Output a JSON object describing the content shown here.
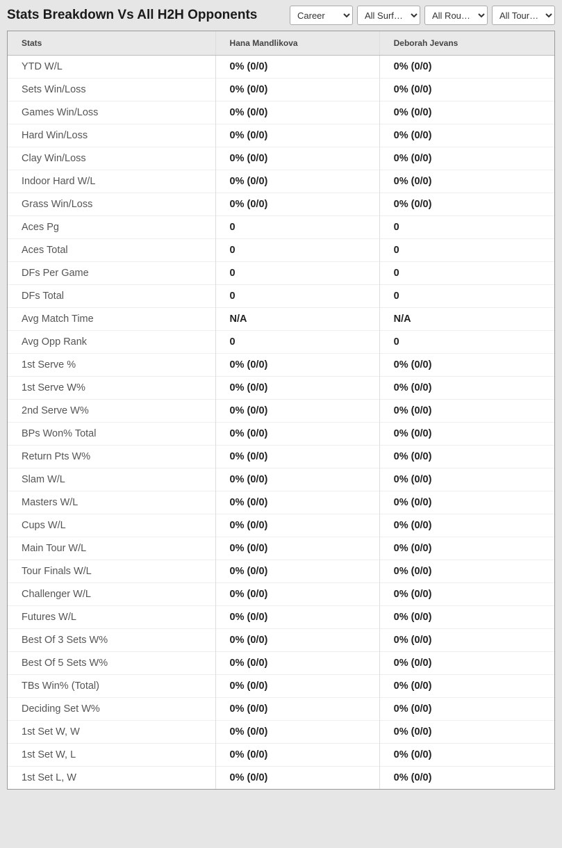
{
  "header": {
    "title": "Stats Breakdown Vs All H2H Opponents",
    "filters": {
      "period": "Career",
      "surface": "All Surf…",
      "round": "All Rou…",
      "tour": "All Tour…"
    }
  },
  "table": {
    "columns": [
      "Stats",
      "Hana Mandlikova",
      "Deborah Jevans"
    ],
    "rows": [
      {
        "label": "YTD W/L",
        "p1": "0% (0/0)",
        "p2": "0% (0/0)"
      },
      {
        "label": "Sets Win/Loss",
        "p1": "0% (0/0)",
        "p2": "0% (0/0)"
      },
      {
        "label": "Games Win/Loss",
        "p1": "0% (0/0)",
        "p2": "0% (0/0)"
      },
      {
        "label": "Hard Win/Loss",
        "p1": "0% (0/0)",
        "p2": "0% (0/0)"
      },
      {
        "label": "Clay Win/Loss",
        "p1": "0% (0/0)",
        "p2": "0% (0/0)"
      },
      {
        "label": "Indoor Hard W/L",
        "p1": "0% (0/0)",
        "p2": "0% (0/0)"
      },
      {
        "label": "Grass Win/Loss",
        "p1": "0% (0/0)",
        "p2": "0% (0/0)"
      },
      {
        "label": "Aces Pg",
        "p1": "0",
        "p2": "0"
      },
      {
        "label": "Aces Total",
        "p1": "0",
        "p2": "0"
      },
      {
        "label": "DFs Per Game",
        "p1": "0",
        "p2": "0"
      },
      {
        "label": "DFs Total",
        "p1": "0",
        "p2": "0"
      },
      {
        "label": "Avg Match Time",
        "p1": "N/A",
        "p2": "N/A"
      },
      {
        "label": "Avg Opp Rank",
        "p1": "0",
        "p2": "0"
      },
      {
        "label": "1st Serve %",
        "p1": "0% (0/0)",
        "p2": "0% (0/0)"
      },
      {
        "label": "1st Serve W%",
        "p1": "0% (0/0)",
        "p2": "0% (0/0)"
      },
      {
        "label": "2nd Serve W%",
        "p1": "0% (0/0)",
        "p2": "0% (0/0)"
      },
      {
        "label": "BPs Won% Total",
        "p1": "0% (0/0)",
        "p2": "0% (0/0)"
      },
      {
        "label": "Return Pts W%",
        "p1": "0% (0/0)",
        "p2": "0% (0/0)"
      },
      {
        "label": "Slam W/L",
        "p1": "0% (0/0)",
        "p2": "0% (0/0)"
      },
      {
        "label": "Masters W/L",
        "p1": "0% (0/0)",
        "p2": "0% (0/0)"
      },
      {
        "label": "Cups W/L",
        "p1": "0% (0/0)",
        "p2": "0% (0/0)"
      },
      {
        "label": "Main Tour W/L",
        "p1": "0% (0/0)",
        "p2": "0% (0/0)"
      },
      {
        "label": "Tour Finals W/L",
        "p1": "0% (0/0)",
        "p2": "0% (0/0)"
      },
      {
        "label": "Challenger W/L",
        "p1": "0% (0/0)",
        "p2": "0% (0/0)"
      },
      {
        "label": "Futures W/L",
        "p1": "0% (0/0)",
        "p2": "0% (0/0)"
      },
      {
        "label": "Best Of 3 Sets W%",
        "p1": "0% (0/0)",
        "p2": "0% (0/0)"
      },
      {
        "label": "Best Of 5 Sets W%",
        "p1": "0% (0/0)",
        "p2": "0% (0/0)"
      },
      {
        "label": "TBs Win% (Total)",
        "p1": "0% (0/0)",
        "p2": "0% (0/0)"
      },
      {
        "label": "Deciding Set W%",
        "p1": "0% (0/0)",
        "p2": "0% (0/0)"
      },
      {
        "label": "1st Set W, W",
        "p1": "0% (0/0)",
        "p2": "0% (0/0)"
      },
      {
        "label": "1st Set W, L",
        "p1": "0% (0/0)",
        "p2": "0% (0/0)"
      },
      {
        "label": "1st Set L, W",
        "p1": "0% (0/0)",
        "p2": "0% (0/0)"
      }
    ]
  }
}
